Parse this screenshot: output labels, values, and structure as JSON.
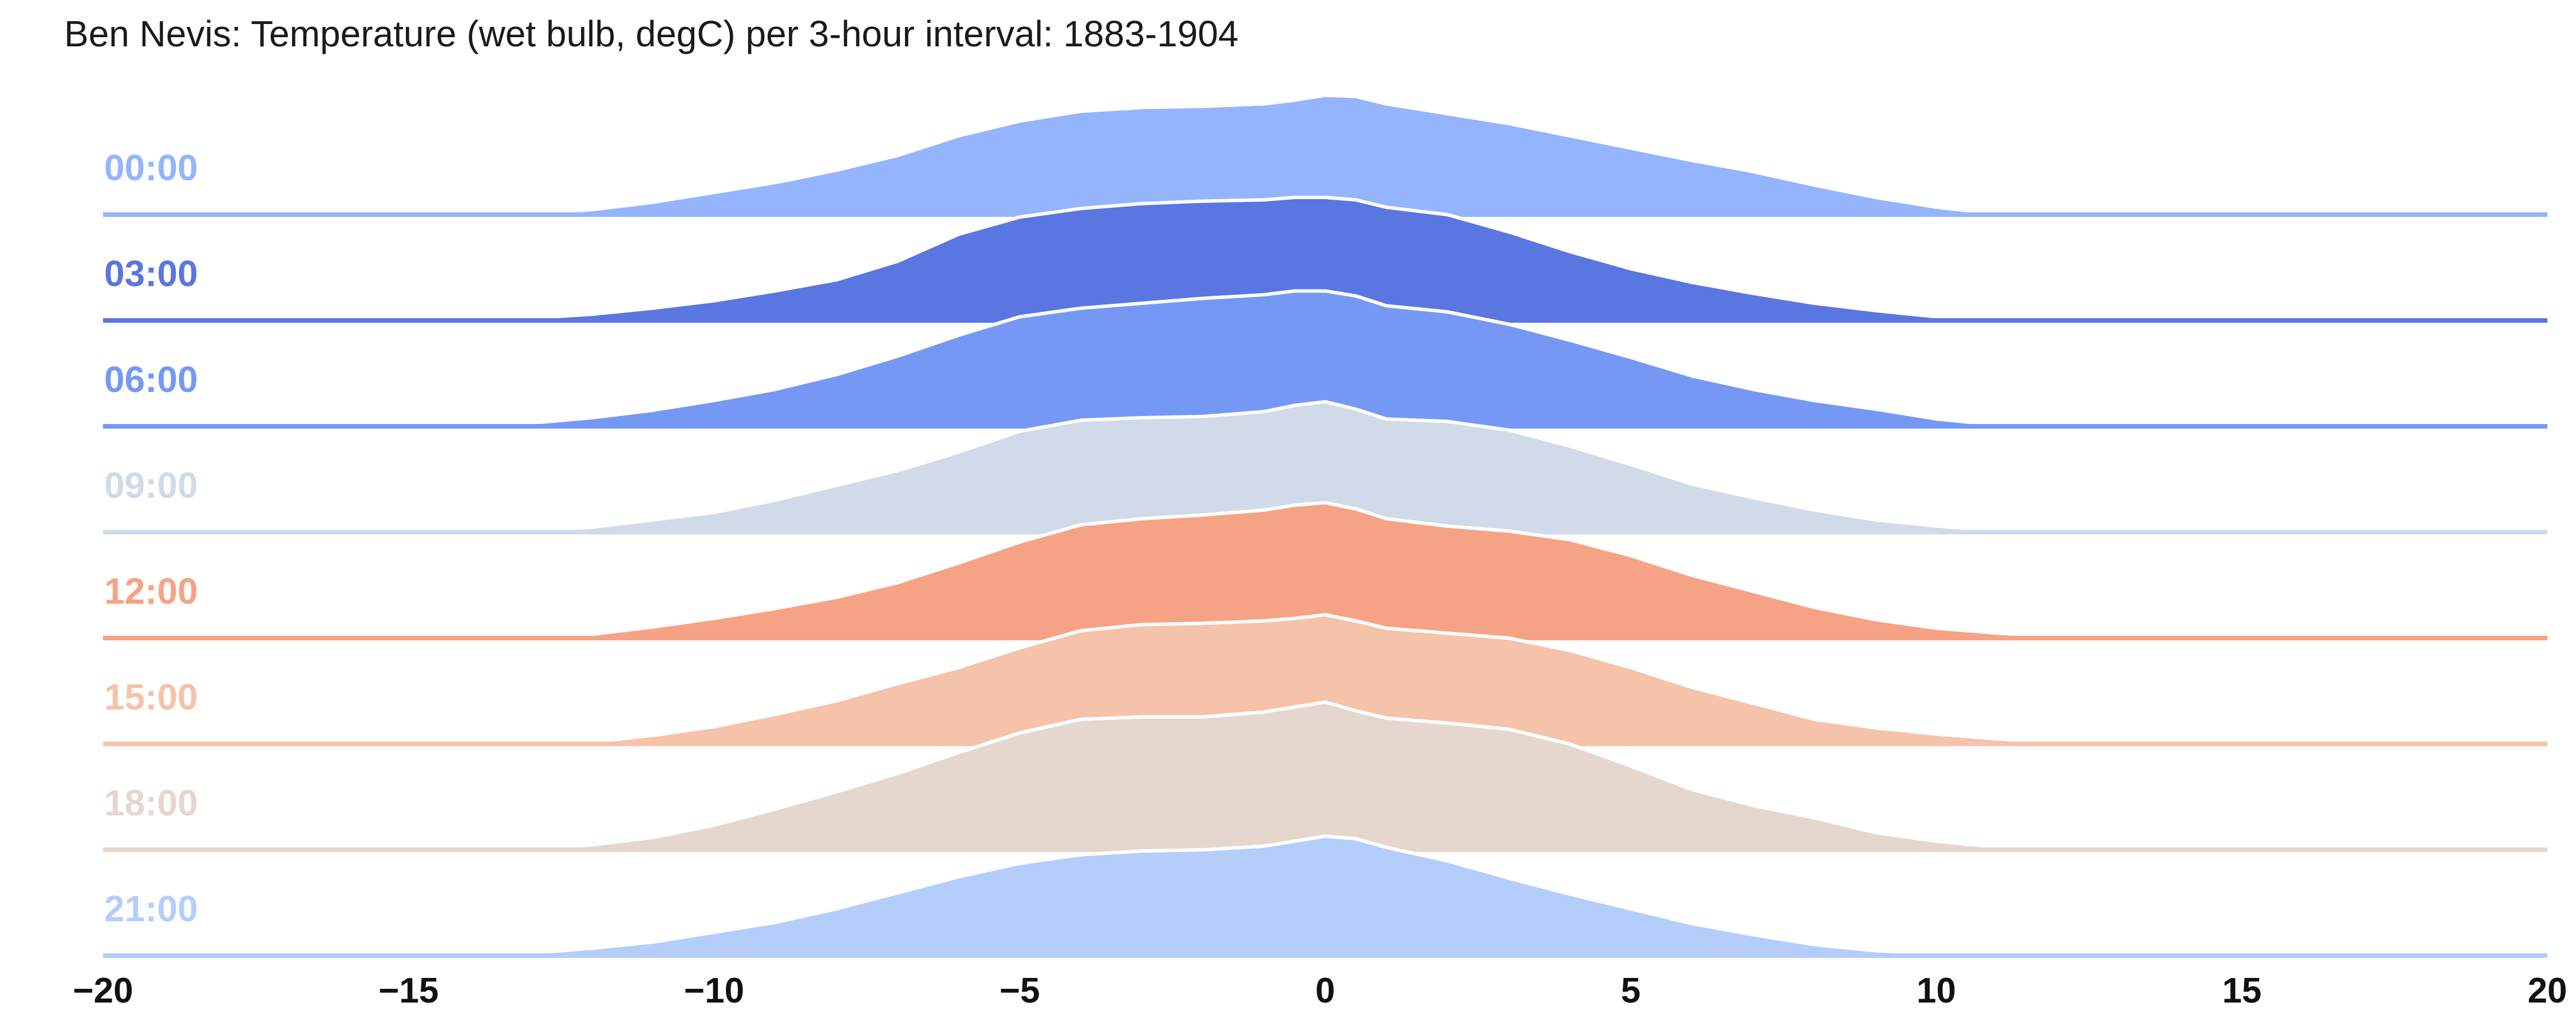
{
  "chart_data": {
    "type": "area",
    "subtype": "ridgeline",
    "title": "Ben Nevis: Temperature (wet bulb, degC) per 3-hour interval: 1883-1904",
    "xlabel": "",
    "ylabel": "",
    "xlim": [
      -20,
      20
    ],
    "xticks": [
      -20,
      -15,
      -10,
      -5,
      0,
      5,
      10,
      15,
      20
    ],
    "xtick_labels": [
      "−20",
      "−15",
      "−10",
      "−5",
      "0",
      "5",
      "10",
      "15",
      "20"
    ],
    "grid": false,
    "legend": "none",
    "x": [
      -20,
      -16,
      -14,
      -13,
      -12,
      -11,
      -10,
      -9,
      -8,
      -7,
      -6,
      -5,
      -4,
      -3,
      -2,
      -1,
      -0.5,
      0,
      0.5,
      1,
      2,
      3,
      4,
      5,
      6,
      7,
      8,
      9,
      10,
      11,
      12,
      13,
      14,
      16,
      20
    ],
    "series": [
      {
        "name": "00:00",
        "color": "#94b4fd",
        "values": [
          0,
          0,
          0,
          0.005,
          0.04,
          0.1,
          0.18,
          0.26,
          0.36,
          0.48,
          0.64,
          0.76,
          0.84,
          0.87,
          0.88,
          0.9,
          0.93,
          0.97,
          0.96,
          0.9,
          0.82,
          0.74,
          0.64,
          0.54,
          0.44,
          0.35,
          0.24,
          0.14,
          0.06,
          0.005,
          0,
          0,
          0,
          0,
          0
        ]
      },
      {
        "name": "03:00",
        "color": "#5a76e0",
        "values": [
          0,
          0,
          0,
          0.02,
          0.05,
          0.1,
          0.16,
          0.24,
          0.33,
          0.48,
          0.7,
          0.84,
          0.91,
          0.95,
          0.97,
          0.98,
          1.0,
          1.0,
          0.98,
          0.92,
          0.86,
          0.72,
          0.56,
          0.42,
          0.31,
          0.22,
          0.14,
          0.08,
          0.03,
          0.005,
          0,
          0,
          0,
          0,
          0
        ]
      },
      {
        "name": "06:00",
        "color": "#7698f5",
        "values": [
          0,
          0,
          0,
          0.025,
          0.07,
          0.13,
          0.21,
          0.3,
          0.42,
          0.57,
          0.74,
          0.89,
          0.96,
          1.0,
          1.04,
          1.07,
          1.1,
          1.1,
          1.06,
          0.98,
          0.93,
          0.83,
          0.7,
          0.56,
          0.41,
          0.3,
          0.21,
          0.14,
          0.06,
          0.01,
          0,
          0,
          0,
          0,
          0
        ]
      },
      {
        "name": "09:00",
        "color": "#d0dae8",
        "values": [
          0,
          0,
          0,
          0.01,
          0.04,
          0.1,
          0.16,
          0.26,
          0.38,
          0.5,
          0.65,
          0.82,
          0.91,
          0.93,
          0.94,
          0.98,
          1.03,
          1.06,
          1.0,
          0.92,
          0.9,
          0.83,
          0.7,
          0.55,
          0.39,
          0.28,
          0.18,
          0.1,
          0.05,
          0.01,
          0,
          0,
          0,
          0,
          0
        ]
      },
      {
        "name": "12:00",
        "color": "#f6a385",
        "values": [
          0,
          0,
          0,
          0,
          0.03,
          0.09,
          0.16,
          0.24,
          0.33,
          0.45,
          0.61,
          0.78,
          0.92,
          0.97,
          1.0,
          1.04,
          1.08,
          1.1,
          1.05,
          0.97,
          0.91,
          0.87,
          0.8,
          0.67,
          0.51,
          0.38,
          0.25,
          0.15,
          0.08,
          0.04,
          0.01,
          0,
          0,
          0,
          0
        ]
      },
      {
        "name": "15:00",
        "color": "#f5c2aa",
        "values": [
          0,
          0,
          0,
          0,
          0.015,
          0.07,
          0.14,
          0.24,
          0.35,
          0.49,
          0.62,
          0.78,
          0.92,
          0.97,
          0.98,
          1.0,
          1.02,
          1.05,
          1.0,
          0.94,
          0.9,
          0.86,
          0.76,
          0.62,
          0.46,
          0.33,
          0.2,
          0.13,
          0.08,
          0.04,
          0.01,
          0,
          0,
          0,
          0
        ]
      },
      {
        "name": "18:00",
        "color": "#e5d7cd",
        "values": [
          0,
          0,
          0,
          0,
          0.04,
          0.1,
          0.2,
          0.33,
          0.47,
          0.62,
          0.79,
          0.95,
          1.06,
          1.08,
          1.08,
          1.12,
          1.16,
          1.2,
          1.13,
          1.07,
          1.03,
          0.98,
          0.86,
          0.68,
          0.49,
          0.36,
          0.26,
          0.14,
          0.07,
          0.02,
          0,
          0,
          0,
          0,
          0
        ]
      },
      {
        "name": "21:00",
        "color": "#b5cdfa",
        "values": [
          0,
          0,
          0,
          0.02,
          0.06,
          0.11,
          0.19,
          0.27,
          0.38,
          0.51,
          0.64,
          0.75,
          0.82,
          0.85,
          0.86,
          0.89,
          0.93,
          0.97,
          0.95,
          0.88,
          0.77,
          0.63,
          0.5,
          0.38,
          0.26,
          0.17,
          0.09,
          0.04,
          0.015,
          0,
          0,
          0,
          0,
          0,
          0
        ]
      }
    ]
  }
}
